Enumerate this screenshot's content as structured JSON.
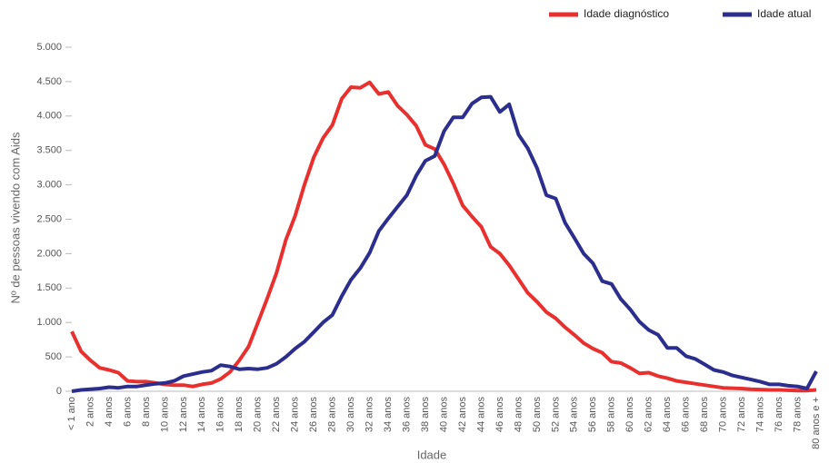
{
  "chart_data": {
    "type": "line",
    "xlabel": "Idade",
    "ylabel": "Nº de pessoas vivendo com Aids",
    "categories": [
      "< 1 ano",
      null,
      "2 anos",
      null,
      "4 anos",
      null,
      "6 anos",
      null,
      "8 anos",
      null,
      "10 anos",
      null,
      "12 anos",
      null,
      "14 anos",
      null,
      "16 anos",
      null,
      "18 anos",
      null,
      "20 anos",
      null,
      "22 anos",
      null,
      "24 anos",
      null,
      "26 anos",
      null,
      "28 anos",
      null,
      "30 anos",
      null,
      "32 anos",
      null,
      "34 anos",
      null,
      "36 anos",
      null,
      "38 anos",
      null,
      "40 anos",
      null,
      "42 anos",
      null,
      "44 anos",
      null,
      "46 anos",
      null,
      "48 anos",
      null,
      "50 anos",
      null,
      "52 anos",
      null,
      "54 anos",
      null,
      "56 anos",
      null,
      "58 anos",
      null,
      "60 anos",
      null,
      "62 anos",
      null,
      "64 anos",
      null,
      "66 anos",
      null,
      "68 anos",
      null,
      "70 anos",
      null,
      "72 anos",
      null,
      "74 anos",
      null,
      "76 anos",
      null,
      "78 anos",
      null,
      "80 anos e +"
    ],
    "series": [
      {
        "name": "Idade diagnóstico",
        "color": "#e8302f",
        "values": [
          870,
          580,
          450,
          340,
          310,
          270,
          150,
          140,
          140,
          120,
          100,
          90,
          90,
          70,
          100,
          120,
          180,
          280,
          450,
          650,
          1000,
          1350,
          1720,
          2200,
          2550,
          3000,
          3400,
          3680,
          3870,
          4250,
          4420,
          4410,
          4490,
          4320,
          4350,
          4150,
          4020,
          3860,
          3580,
          3520,
          3300,
          3020,
          2700,
          2540,
          2390,
          2100,
          2000,
          1830,
          1630,
          1430,
          1300,
          1150,
          1060,
          930,
          820,
          700,
          620,
          560,
          430,
          410,
          340,
          260,
          270,
          220,
          190,
          150,
          130,
          110,
          90,
          70,
          50,
          45,
          40,
          30,
          25,
          20,
          20,
          15,
          10,
          10,
          20
        ]
      },
      {
        "name": "Idade atual",
        "color": "#2b2e8c",
        "values": [
          0,
          20,
          30,
          40,
          60,
          50,
          70,
          70,
          90,
          110,
          120,
          150,
          220,
          250,
          280,
          300,
          380,
          360,
          320,
          330,
          320,
          340,
          400,
          500,
          620,
          720,
          860,
          1000,
          1110,
          1380,
          1620,
          1790,
          2010,
          2330,
          2510,
          2680,
          2850,
          3130,
          3350,
          3420,
          3780,
          3980,
          3980,
          4180,
          4270,
          4280,
          4060,
          4170,
          3730,
          3530,
          3240,
          2850,
          2800,
          2450,
          2230,
          2000,
          1860,
          1600,
          1560,
          1340,
          1190,
          1010,
          890,
          820,
          630,
          630,
          510,
          470,
          390,
          310,
          280,
          230,
          200,
          170,
          140,
          100,
          100,
          80,
          70,
          40,
          290
        ]
      }
    ],
    "ylim": [
      0,
      5000
    ],
    "yticks": [
      0,
      500,
      {
        "value": 1000,
        "label": "1.000"
      },
      {
        "value": 1500,
        "label": "1.500"
      },
      {
        "value": 2000,
        "label": "2.000"
      },
      {
        "value": 2500,
        "label": "2.500"
      },
      {
        "value": 3000,
        "label": "3.000"
      },
      {
        "value": 3500,
        "label": "3.500"
      },
      {
        "value": 4000,
        "label": "4.000"
      },
      {
        "value": 4500,
        "label": "4.500"
      },
      {
        "value": 5000,
        "label": "5.000"
      }
    ],
    "grid": false
  }
}
